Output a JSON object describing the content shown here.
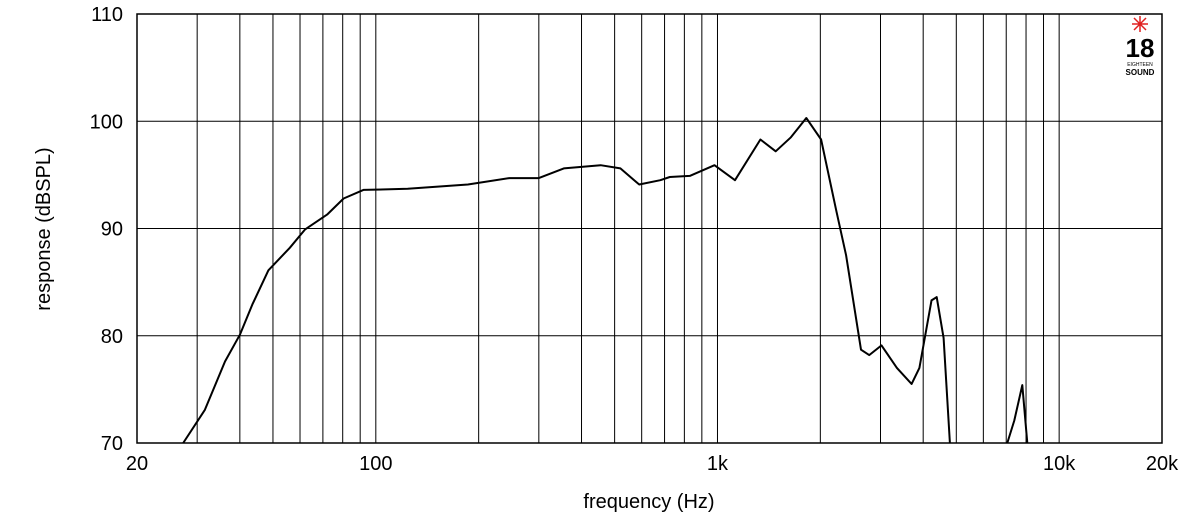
{
  "chart_data": {
    "type": "line",
    "xlabel": "frequency (Hz)",
    "ylabel": "response (dBSPL)",
    "xscale": "log",
    "grid": true,
    "xlim": [
      20,
      20000
    ],
    "ylim": [
      70,
      110
    ],
    "xticks": [
      20,
      100,
      {
        "value": 1000,
        "label": "1k"
      },
      {
        "value": 10000,
        "label": "10k"
      },
      {
        "value": 20000,
        "label": "20k"
      }
    ],
    "x_minor_ticks": [
      30,
      40,
      50,
      60,
      70,
      80,
      90,
      200,
      300,
      400,
      500,
      600,
      700,
      800,
      900,
      2000,
      3000,
      4000,
      5000,
      6000,
      7000,
      8000,
      9000
    ],
    "yticks": [
      70,
      80,
      90,
      100,
      110
    ],
    "x": [
      27.3,
      31.6,
      36.2,
      40,
      43.5,
      48.5,
      56,
      62,
      72,
      80.5,
      92,
      124,
      186,
      246,
      300,
      355,
      455,
      520,
      590,
      680,
      725,
      830,
      980,
      1125,
      1335,
      1480,
      1640,
      1820,
      2010,
      2225,
      2380,
      2630,
      2780,
      3020,
      3350,
      3700,
      3900,
      4230,
      4380,
      4590,
      4790,
      5500,
      7050,
      7390,
      7800,
      8070
    ],
    "series": [
      {
        "color": "#000000",
        "values": [
          70,
          73.1,
          77.6,
          80.1,
          82.9,
          86.1,
          88.2,
          89.9,
          91.3,
          92.8,
          93.6,
          93.7,
          94.1,
          94.7,
          94.7,
          95.6,
          95.9,
          95.6,
          94.1,
          94.5,
          94.8,
          94.9,
          95.9,
          94.5,
          98.3,
          97.2,
          98.5,
          100.3,
          98.3,
          91.7,
          87.5,
          78.7,
          78.2,
          79.1,
          77.0,
          75.5,
          77.0,
          83.3,
          83.6,
          79.8,
          70,
          null,
          70,
          72.1,
          75.4,
          70
        ]
      }
    ]
  },
  "logo": {
    "number": "18",
    "line1": "EIGHTEEN",
    "line2": "SOUND"
  }
}
